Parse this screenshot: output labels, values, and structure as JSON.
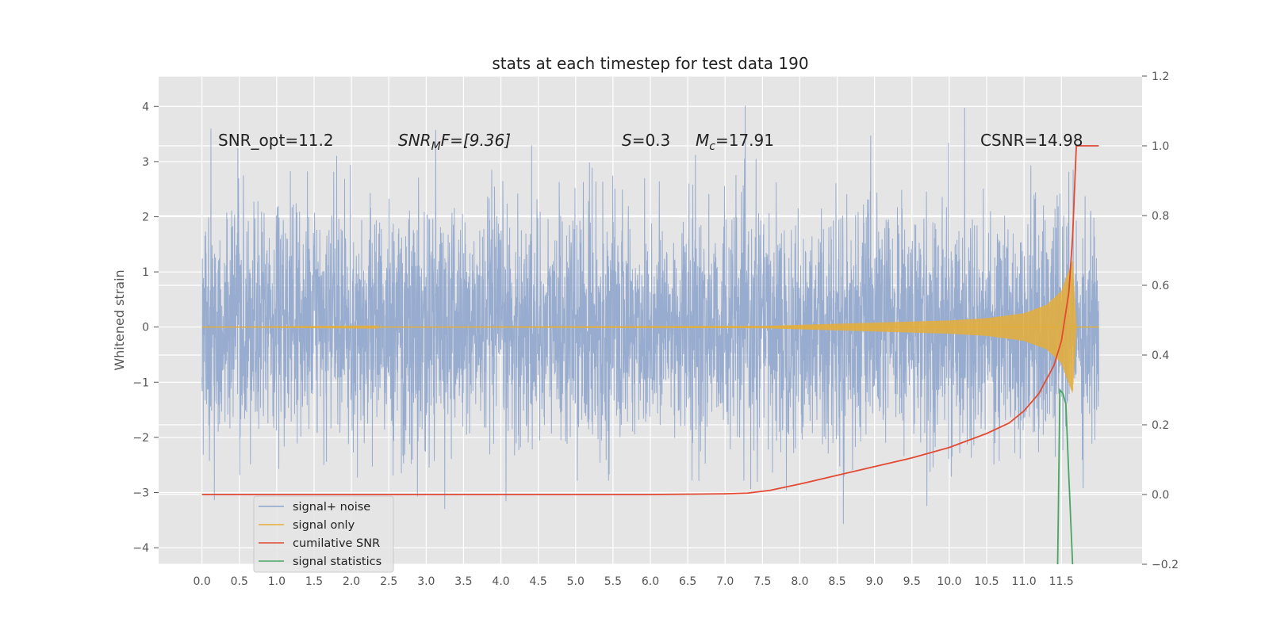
{
  "chart_data": {
    "type": "line",
    "title": "stats at each timestep for test data 190",
    "xlabel": "",
    "ylabel": "Whitened strain",
    "y2label": "",
    "xlim": [
      -0.58,
      12.58
    ],
    "ylim": [
      -4.3,
      4.55
    ],
    "y2lim": [
      -0.2,
      1.2
    ],
    "x_ticks": [
      "0.0",
      "0.5",
      "1.0",
      "1.5",
      "2.0",
      "2.5",
      "3.0",
      "3.5",
      "4.0",
      "4.5",
      "5.0",
      "5.5",
      "6.0",
      "6.5",
      "7.0",
      "7.5",
      "8.0",
      "8.5",
      "9.0",
      "9.5",
      "10.0",
      "10.5",
      "11.0",
      "11.5"
    ],
    "y_ticks": [
      "4",
      "3",
      "2",
      "1",
      "0",
      "−1",
      "−2",
      "−3",
      "−4"
    ],
    "y2_ticks": [
      "1.2",
      "1.0",
      "0.8",
      "0.6",
      "0.4",
      "0.2",
      "0.0",
      "−0.2"
    ],
    "grid": true,
    "legend_position": "lower-left",
    "colors": {
      "background": "#e5e5e5",
      "grid": "#ffffff",
      "signal_noise": "#8fa5cc",
      "signal_only": "#e5ae38",
      "cumulative_snr": "#e24a33",
      "signal_statistics": "#348abd"
    },
    "annotations": {
      "snr_opt": "SNR_opt=11.2",
      "snr_mf_base": "SNR",
      "snr_mf_sub": "M",
      "snr_mf_rest": "F=[9.36]",
      "s_sym": "S",
      "s_value": "=0.3",
      "mc_sym": "M",
      "mc_sub": "c",
      "mc_value": "=17.91",
      "csnr": "CSNR=14.98"
    },
    "legend": [
      "signal+ noise",
      "signal only",
      "cumilative SNR",
      "signal statistics"
    ],
    "series": [
      {
        "name": "signal+ noise",
        "axis": "left",
        "description_range": [
          -3.9,
          4.1
        ],
        "x_range": [
          0.0,
          12.0
        ]
      },
      {
        "name": "signal only",
        "axis": "left",
        "envelope_x": [
          0.0,
          7.5,
          8.0,
          9.0,
          10.0,
          10.5,
          11.0,
          11.3,
          11.5,
          11.65,
          11.7,
          12.0
        ],
        "envelope_amp": [
          0.0,
          0.02,
          0.04,
          0.08,
          0.12,
          0.16,
          0.25,
          0.4,
          0.65,
          1.2,
          0.0,
          0.0
        ]
      },
      {
        "name": "cumilative SNR",
        "axis": "right",
        "x": [
          0.0,
          5.0,
          6.0,
          7.0,
          7.3,
          7.6,
          8.0,
          8.5,
          9.0,
          9.5,
          10.0,
          10.5,
          10.8,
          11.0,
          11.2,
          11.4,
          11.5,
          11.6,
          11.65,
          11.7,
          12.0
        ],
        "y": [
          0.0,
          0.0,
          0.0,
          0.002,
          0.004,
          0.012,
          0.03,
          0.055,
          0.08,
          0.105,
          0.135,
          0.175,
          0.205,
          0.24,
          0.29,
          0.37,
          0.44,
          0.58,
          0.74,
          1.0,
          1.0
        ]
      },
      {
        "name": "signal statistics",
        "axis": "right",
        "x": [
          11.45,
          11.48,
          11.52,
          11.56,
          11.6,
          11.65
        ],
        "y": [
          -0.2,
          0.3,
          0.29,
          0.26,
          0.05,
          -0.2
        ]
      }
    ]
  }
}
